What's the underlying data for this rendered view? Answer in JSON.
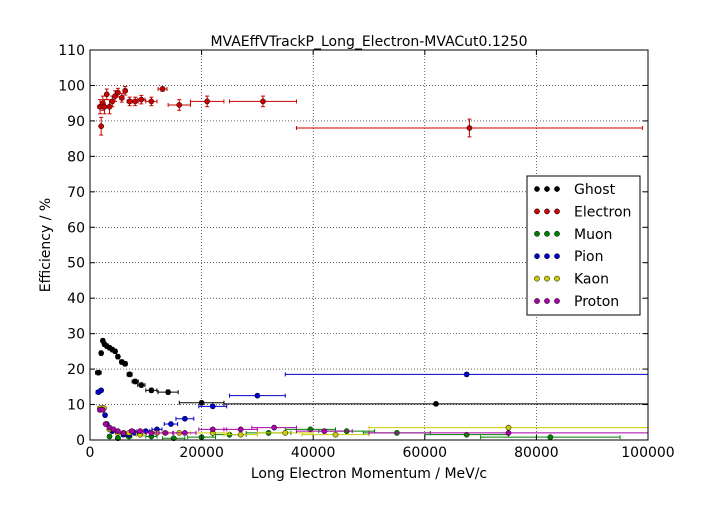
{
  "chart_data": {
    "type": "scatter",
    "title": "MVAEffVTrackP_Long_Electron-MVACut0.1250",
    "xlabel": "Long Electron Momentum / MeV/c",
    "ylabel": "Efficiency / %",
    "xlim": [
      0,
      100000
    ],
    "ylim": [
      0,
      110
    ],
    "xticks": [
      0,
      20000,
      40000,
      60000,
      80000,
      100000
    ],
    "xtick_labels": [
      "0",
      "20000",
      "40000",
      "60000",
      "80000",
      "100000"
    ],
    "yticks": [
      0,
      10,
      20,
      30,
      40,
      50,
      60,
      70,
      80,
      90,
      100,
      110
    ],
    "ytick_labels": [
      "0",
      "10",
      "20",
      "30",
      "40",
      "50",
      "60",
      "70",
      "80",
      "90",
      "100",
      "110"
    ],
    "grid": true,
    "legend_position": "right",
    "series": [
      {
        "name": "Ghost",
        "color": "#000000",
        "points": [
          {
            "x": 1500,
            "y": 19,
            "xerr": 500,
            "yerr": 0.6
          },
          {
            "x": 2000,
            "y": 24.5,
            "xerr": 250,
            "yerr": 0.6
          },
          {
            "x": 2300,
            "y": 28,
            "xerr": 200,
            "yerr": 0.6
          },
          {
            "x": 2600,
            "y": 27,
            "xerr": 200,
            "yerr": 0.6
          },
          {
            "x": 3000,
            "y": 26.5,
            "xerr": 250,
            "yerr": 0.6
          },
          {
            "x": 3500,
            "y": 26,
            "xerr": 250,
            "yerr": 0.6
          },
          {
            "x": 4000,
            "y": 25.5,
            "xerr": 250,
            "yerr": 0.6
          },
          {
            "x": 4500,
            "y": 25,
            "xerr": 300,
            "yerr": 0.6
          },
          {
            "x": 5000,
            "y": 23.5,
            "xerr": 300,
            "yerr": 0.6
          },
          {
            "x": 5700,
            "y": 22,
            "xerr": 350,
            "yerr": 0.6
          },
          {
            "x": 6300,
            "y": 21.5,
            "xerr": 350,
            "yerr": 0.6
          },
          {
            "x": 7100,
            "y": 18.5,
            "xerr": 450,
            "yerr": 0.6
          },
          {
            "x": 8100,
            "y": 16.5,
            "xerr": 550,
            "yerr": 0.6
          },
          {
            "x": 9200,
            "y": 15.5,
            "xerr": 650,
            "yerr": 0.6
          },
          {
            "x": 11000,
            "y": 14,
            "xerr": 1000,
            "yerr": 0.6
          },
          {
            "x": 14000,
            "y": 13.5,
            "xerr": 1800,
            "yerr": 0.6
          },
          {
            "x": 20000,
            "y": 10.5,
            "xerr": 4000,
            "yerr": 0.5
          },
          {
            "x": 62000,
            "y": 10.2,
            "xerr": 38000,
            "yerr": 0.5
          }
        ]
      },
      {
        "name": "Electron",
        "color": "#cc0000",
        "points": [
          {
            "x": 1800,
            "y": 94,
            "xerr": 400,
            "yerr": 2
          },
          {
            "x": 2000,
            "y": 88.5,
            "xerr": 250,
            "yerr": 2.5
          },
          {
            "x": 2300,
            "y": 95,
            "xerr": 200,
            "yerr": 2
          },
          {
            "x": 2600,
            "y": 94,
            "xerr": 200,
            "yerr": 2
          },
          {
            "x": 3000,
            "y": 97.5,
            "xerr": 250,
            "yerr": 1.5
          },
          {
            "x": 3500,
            "y": 94,
            "xerr": 250,
            "yerr": 2
          },
          {
            "x": 4000,
            "y": 95.5,
            "xerr": 250,
            "yerr": 1.5
          },
          {
            "x": 4500,
            "y": 97,
            "xerr": 300,
            "yerr": 1.5
          },
          {
            "x": 5000,
            "y": 98,
            "xerr": 300,
            "yerr": 1.2
          },
          {
            "x": 5700,
            "y": 96.5,
            "xerr": 350,
            "yerr": 1.2
          },
          {
            "x": 6300,
            "y": 98.5,
            "xerr": 350,
            "yerr": 1.2
          },
          {
            "x": 7100,
            "y": 95.5,
            "xerr": 450,
            "yerr": 1.2
          },
          {
            "x": 8100,
            "y": 95.5,
            "xerr": 550,
            "yerr": 1.2
          },
          {
            "x": 9200,
            "y": 96,
            "xerr": 650,
            "yerr": 1.2
          },
          {
            "x": 11000,
            "y": 95.5,
            "xerr": 1000,
            "yerr": 1.2
          },
          {
            "x": 13000,
            "y": 99,
            "xerr": 800,
            "yerr": 0.6
          },
          {
            "x": 16000,
            "y": 94.5,
            "xerr": 2000,
            "yerr": 1.5
          },
          {
            "x": 21000,
            "y": 95.5,
            "xerr": 3000,
            "yerr": 1.5
          },
          {
            "x": 31000,
            "y": 95.5,
            "xerr": 6000,
            "yerr": 1.5
          },
          {
            "x": 68000,
            "y": 88,
            "xerr": 31000,
            "yerr": 2.5
          }
        ]
      },
      {
        "name": "Muon",
        "color": "#008000",
        "points": [
          {
            "x": 3500,
            "y": 1,
            "xerr": 300,
            "yerr": 0.3
          },
          {
            "x": 5000,
            "y": 0.5,
            "xerr": 400,
            "yerr": 0.3
          },
          {
            "x": 7000,
            "y": 1,
            "xerr": 500,
            "yerr": 0.3
          },
          {
            "x": 9000,
            "y": 1.5,
            "xerr": 700,
            "yerr": 0.3
          },
          {
            "x": 11000,
            "y": 1,
            "xerr": 1000,
            "yerr": 0.3
          },
          {
            "x": 15000,
            "y": 0.5,
            "xerr": 2000,
            "yerr": 0.3
          },
          {
            "x": 20000,
            "y": 0.8,
            "xerr": 2500,
            "yerr": 0.3
          },
          {
            "x": 25000,
            "y": 1.5,
            "xerr": 3000,
            "yerr": 0.3
          },
          {
            "x": 32000,
            "y": 2,
            "xerr": 4000,
            "yerr": 0.3
          },
          {
            "x": 39500,
            "y": 3,
            "xerr": 4500,
            "yerr": 0.3
          },
          {
            "x": 46000,
            "y": 2.5,
            "xerr": 5000,
            "yerr": 0.3
          },
          {
            "x": 55000,
            "y": 2,
            "xerr": 6000,
            "yerr": 0.3
          },
          {
            "x": 67500,
            "y": 1.5,
            "xerr": 7500,
            "yerr": 0.3
          },
          {
            "x": 82500,
            "y": 0.8,
            "xerr": 12500,
            "yerr": 0.3
          }
        ]
      },
      {
        "name": "Pion",
        "color": "#0000cc",
        "points": [
          {
            "x": 1500,
            "y": 13.5,
            "xerr": 400,
            "yerr": 0.5
          },
          {
            "x": 2000,
            "y": 14,
            "xerr": 250,
            "yerr": 0.5
          },
          {
            "x": 2300,
            "y": 9,
            "xerr": 200,
            "yerr": 0.5
          },
          {
            "x": 2700,
            "y": 7,
            "xerr": 200,
            "yerr": 0.5
          },
          {
            "x": 3000,
            "y": 4.5,
            "xerr": 200,
            "yerr": 0.5
          },
          {
            "x": 3500,
            "y": 3,
            "xerr": 250,
            "yerr": 0.4
          },
          {
            "x": 4000,
            "y": 2.5,
            "xerr": 250,
            "yerr": 0.4
          },
          {
            "x": 5000,
            "y": 2,
            "xerr": 300,
            "yerr": 0.4
          },
          {
            "x": 6000,
            "y": 1.5,
            "xerr": 350,
            "yerr": 0.4
          },
          {
            "x": 7000,
            "y": 1.5,
            "xerr": 450,
            "yerr": 0.4
          },
          {
            "x": 8000,
            "y": 2,
            "xerr": 550,
            "yerr": 0.4
          },
          {
            "x": 10000,
            "y": 2.5,
            "xerr": 700,
            "yerr": 0.4
          },
          {
            "x": 12000,
            "y": 3,
            "xerr": 900,
            "yerr": 0.4
          },
          {
            "x": 14500,
            "y": 4.5,
            "xerr": 1200,
            "yerr": 0.5
          },
          {
            "x": 17000,
            "y": 6,
            "xerr": 1600,
            "yerr": 0.5
          },
          {
            "x": 22000,
            "y": 9.5,
            "xerr": 2500,
            "yerr": 0.5
          },
          {
            "x": 30000,
            "y": 12.5,
            "xerr": 5000,
            "yerr": 0.5
          },
          {
            "x": 67500,
            "y": 18.5,
            "xerr": 32500,
            "yerr": 0.5
          }
        ]
      },
      {
        "name": "Kaon",
        "color": "#cccc00",
        "points": [
          {
            "x": 1800,
            "y": 9,
            "xerr": 400,
            "yerr": 0.5
          },
          {
            "x": 2500,
            "y": 9,
            "xerr": 250,
            "yerr": 0.5
          },
          {
            "x": 3500,
            "y": 3,
            "xerr": 300,
            "yerr": 0.4
          },
          {
            "x": 5000,
            "y": 2,
            "xerr": 400,
            "yerr": 0.4
          },
          {
            "x": 7000,
            "y": 2,
            "xerr": 500,
            "yerr": 0.4
          },
          {
            "x": 9000,
            "y": 1.5,
            "xerr": 700,
            "yerr": 0.4
          },
          {
            "x": 12000,
            "y": 2,
            "xerr": 1000,
            "yerr": 0.4
          },
          {
            "x": 16000,
            "y": 2,
            "xerr": 2000,
            "yerr": 0.4
          },
          {
            "x": 22000,
            "y": 2,
            "xerr": 3000,
            "yerr": 0.4
          },
          {
            "x": 27000,
            "y": 1.5,
            "xerr": 3000,
            "yerr": 0.4
          },
          {
            "x": 35000,
            "y": 2,
            "xerr": 5000,
            "yerr": 0.4
          },
          {
            "x": 44000,
            "y": 1.5,
            "xerr": 6000,
            "yerr": 0.4
          },
          {
            "x": 75000,
            "y": 3.5,
            "xerr": 25000,
            "yerr": 0.5
          }
        ]
      },
      {
        "name": "Proton",
        "color": "#aa00aa",
        "points": [
          {
            "x": 1800,
            "y": 8.5,
            "xerr": 400,
            "yerr": 0.5
          },
          {
            "x": 2300,
            "y": 8.5,
            "xerr": 250,
            "yerr": 0.5
          },
          {
            "x": 2800,
            "y": 4.5,
            "xerr": 200,
            "yerr": 0.4
          },
          {
            "x": 3500,
            "y": 3.5,
            "xerr": 250,
            "yerr": 0.4
          },
          {
            "x": 4200,
            "y": 3,
            "xerr": 250,
            "yerr": 0.4
          },
          {
            "x": 5000,
            "y": 2.5,
            "xerr": 300,
            "yerr": 0.4
          },
          {
            "x": 6000,
            "y": 2,
            "xerr": 350,
            "yerr": 0.4
          },
          {
            "x": 7500,
            "y": 2.5,
            "xerr": 450,
            "yerr": 0.4
          },
          {
            "x": 9000,
            "y": 2.5,
            "xerr": 600,
            "yerr": 0.4
          },
          {
            "x": 11000,
            "y": 2,
            "xerr": 900,
            "yerr": 0.4
          },
          {
            "x": 13500,
            "y": 2,
            "xerr": 1300,
            "yerr": 0.4
          },
          {
            "x": 17000,
            "y": 2,
            "xerr": 2000,
            "yerr": 0.4
          },
          {
            "x": 22000,
            "y": 3,
            "xerr": 2500,
            "yerr": 0.4
          },
          {
            "x": 27000,
            "y": 3,
            "xerr": 3000,
            "yerr": 0.4
          },
          {
            "x": 33000,
            "y": 3.5,
            "xerr": 4000,
            "yerr": 0.4
          },
          {
            "x": 42000,
            "y": 2.5,
            "xerr": 5000,
            "yerr": 0.4
          },
          {
            "x": 75000,
            "y": 2,
            "xerr": 25000,
            "yerr": 0.4
          }
        ]
      }
    ]
  }
}
